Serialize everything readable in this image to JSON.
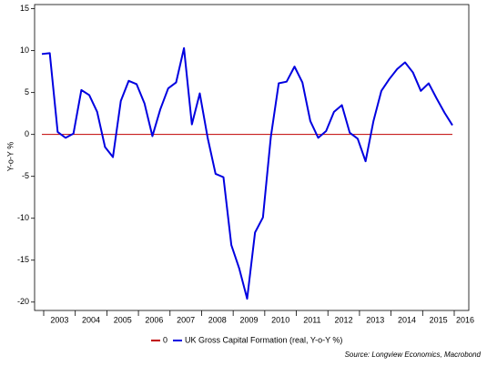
{
  "chart_data": {
    "type": "line",
    "y_label": "Y-o-Y %",
    "source": "Source: Longview Economics, Macrobond",
    "categories": [
      "2003",
      null,
      null,
      null,
      "2004",
      null,
      null,
      null,
      "2005",
      null,
      null,
      null,
      "2006",
      null,
      null,
      null,
      "2007",
      null,
      null,
      null,
      "2008",
      null,
      null,
      null,
      "2009",
      null,
      null,
      null,
      "2010",
      null,
      null,
      null,
      "2011",
      null,
      null,
      null,
      "2012",
      null,
      null,
      null,
      "2013",
      null,
      null,
      null,
      "2014",
      null,
      null,
      null,
      "2015",
      null,
      null,
      null,
      "2016"
    ],
    "series": [
      {
        "name": "0",
        "color": "#c00000",
        "values": [
          0,
          0,
          0,
          0,
          0,
          0,
          0,
          0,
          0,
          0,
          0,
          0,
          0,
          0,
          0,
          0,
          0,
          0,
          0,
          0,
          0,
          0,
          0,
          0,
          0,
          0,
          0,
          0,
          0,
          0,
          0,
          0,
          0,
          0,
          0,
          0,
          0,
          0,
          0,
          0,
          0,
          0,
          0,
          0,
          0,
          0,
          0,
          0,
          0,
          0,
          0,
          0,
          0
        ]
      },
      {
        "name": "UK Gross Capital Formation (real, Y-o-Y %)",
        "color": "#0000e0",
        "values": [
          9.6,
          9.7,
          0.3,
          -0.4,
          0.1,
          5.3,
          4.7,
          2.7,
          -1.5,
          -2.7,
          4.0,
          6.4,
          6.0,
          3.7,
          -0.2,
          3.0,
          5.5,
          6.2,
          10.3,
          1.2,
          4.9,
          -0.4,
          -4.7,
          -5.1,
          -13.2,
          -16.0,
          -19.6,
          -11.7,
          -9.9,
          -0.3,
          6.1,
          6.3,
          8.1,
          6.2,
          1.6,
          -0.4,
          0.4,
          2.7,
          3.5,
          0.2,
          -0.5,
          -3.2,
          1.6,
          5.2,
          6.6,
          7.8,
          8.6,
          7.4,
          5.2,
          6.1,
          4.3,
          2.6,
          1.1
        ]
      }
    ],
    "ylim": [
      -21,
      15.5
    ],
    "yticks": [
      15,
      10,
      5,
      0,
      -5,
      -10,
      -15,
      -20
    ],
    "grid": false,
    "legend": "bottom"
  }
}
